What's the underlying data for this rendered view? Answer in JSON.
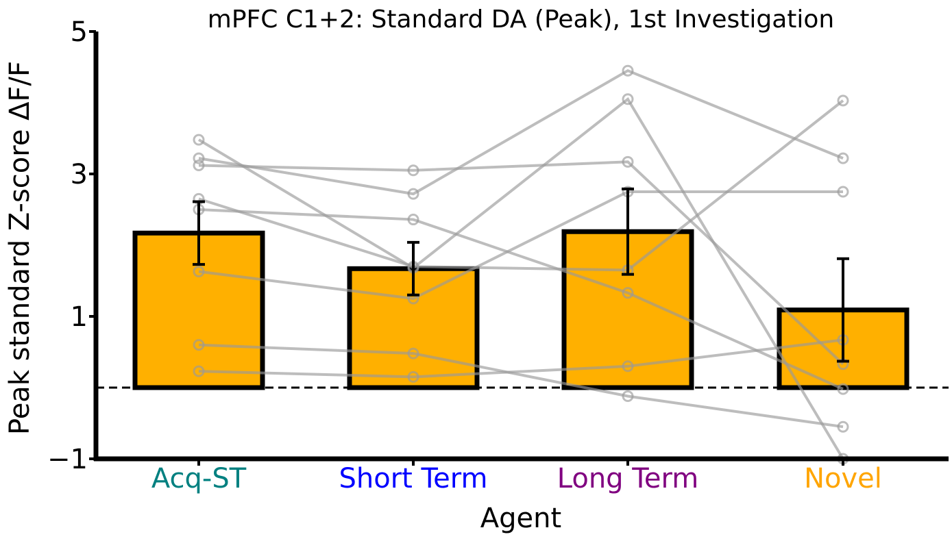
{
  "chart_data": {
    "type": "bar",
    "title": "mPFC C1+2: Standard DA (Peak), 1st Investigation",
    "xlabel": "Agent",
    "ylabel": "Peak standard Z-score ΔF/F",
    "ylim": [
      -1,
      5
    ],
    "yticks": [
      5,
      3,
      1,
      -1
    ],
    "ytick_labels": [
      "5",
      "3",
      "1",
      "−1"
    ],
    "categories": [
      "Acq-ST",
      "Short Term",
      "Long Term",
      "Novel"
    ],
    "category_colors": [
      "#008080",
      "#0000ff",
      "#800080",
      "#ffa500"
    ],
    "bar_color": "#ffb000",
    "bar_edge_color": "#000000",
    "values": [
      2.17,
      1.67,
      2.19,
      1.09
    ],
    "errors": [
      0.44,
      0.37,
      0.6,
      0.72
    ],
    "baseline": 0,
    "subjects": [
      [
        3.48,
        1.68,
        4.05,
        -1.0
      ],
      [
        3.22,
        2.72,
        4.45,
        3.22
      ],
      [
        3.12,
        3.05,
        3.17,
        0.33
      ],
      [
        2.65,
        1.7,
        1.65,
        4.03
      ],
      [
        2.5,
        2.36,
        1.33,
        -0.02
      ],
      [
        1.63,
        1.25,
        2.75,
        2.75
      ],
      [
        0.6,
        0.48,
        -0.12,
        -0.55
      ],
      [
        0.23,
        0.15,
        0.3,
        0.67
      ]
    ],
    "subject_color": "#999999",
    "grid": false
  }
}
